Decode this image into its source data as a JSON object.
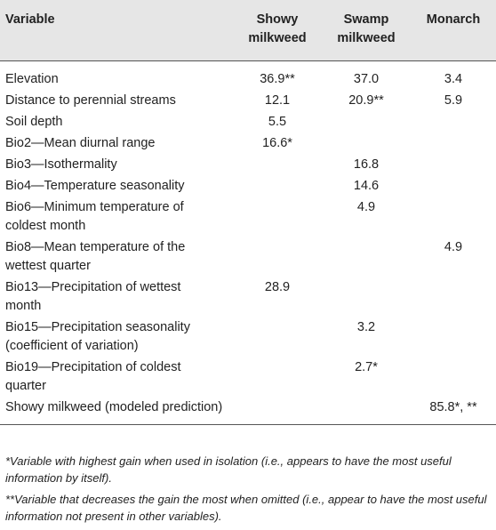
{
  "table": {
    "headers": {
      "variable": "Variable",
      "showy_line1": "Showy",
      "showy_line2": "milkweed",
      "swamp_line1": "Swamp",
      "swamp_line2": "milkweed",
      "monarch": "Monarch"
    },
    "rows": [
      {
        "variable": "Elevation",
        "showy": "36.9**",
        "swamp": "37.0",
        "monarch": "3.4"
      },
      {
        "variable": "Distance to perennial streams",
        "showy": "12.1",
        "swamp": "20.9**",
        "monarch": "5.9"
      },
      {
        "variable": "Soil depth",
        "showy": "5.5",
        "swamp": "",
        "monarch": ""
      },
      {
        "variable": "Bio2—Mean diurnal range",
        "showy": "16.6*",
        "swamp": "",
        "monarch": ""
      },
      {
        "variable": "Bio3—Isothermality",
        "showy": "",
        "swamp": "16.8",
        "monarch": ""
      },
      {
        "variable": "Bio4—Temperature seasonality",
        "showy": "",
        "swamp": "14.6",
        "monarch": ""
      },
      {
        "variable_line1": "Bio6—Minimum temperature of",
        "variable_line2": "coldest month",
        "showy": "",
        "swamp": "4.9",
        "monarch": ""
      },
      {
        "variable_line1": "Bio8—Mean temperature of the",
        "variable_line2": "wettest quarter",
        "showy": "",
        "swamp": "",
        "monarch": "4.9"
      },
      {
        "variable_line1": "Bio13—Precipitation of wettest",
        "variable_line2": "month",
        "showy": "28.9",
        "swamp": "",
        "monarch": ""
      },
      {
        "variable_line1": "Bio15—Precipitation seasonality",
        "variable_line2": "(coefficient of variation)",
        "showy": "",
        "swamp": "3.2",
        "monarch": ""
      },
      {
        "variable_line1": "Bio19—Precipitation of coldest",
        "variable_line2": "quarter",
        "showy": "",
        "swamp": "2.7*",
        "monarch": ""
      },
      {
        "variable": "Showy milkweed (modeled prediction)",
        "showy": "",
        "swamp": "",
        "monarch": "85.8*, **"
      }
    ]
  },
  "footnotes": {
    "single": "*Variable with highest gain when used in isolation (i.e., appears to have the most useful information by itself).",
    "double": "**Variable that decreases the gain the most when omitted (i.e., appear to have the most useful information not present in other variables)."
  }
}
